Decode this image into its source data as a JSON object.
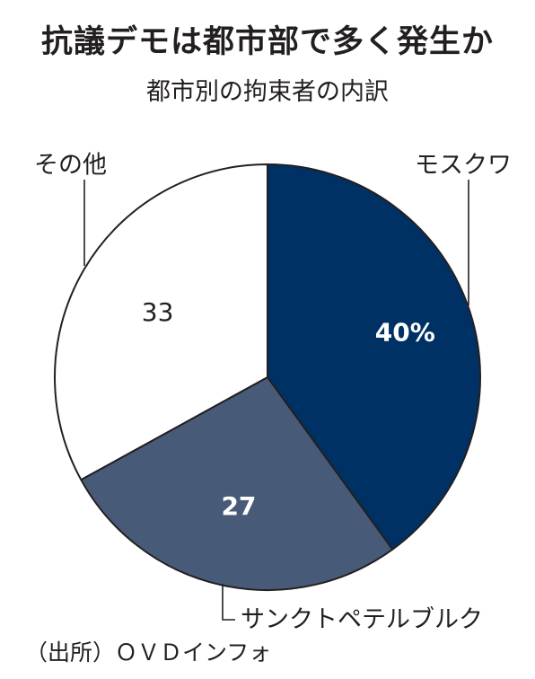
{
  "chart_data": {
    "type": "pie",
    "title": "抗議デモは都市部で多く発生か",
    "subtitle": "都市別の拘束者の内訳",
    "unit": "%",
    "slices": [
      {
        "label": "モスクワ",
        "value": 40,
        "value_label": "40%",
        "color": "#003165"
      },
      {
        "label": "サンクトペテルブルク",
        "value": 27,
        "value_label": "27",
        "color": "#475b79"
      },
      {
        "label": "その他",
        "value": 33,
        "value_label": "33",
        "color": "#ffffff"
      }
    ],
    "start": "12 o'clock",
    "direction": "clockwise",
    "legend": "none"
  },
  "source": "（出所）ＯＶＤインフォ"
}
